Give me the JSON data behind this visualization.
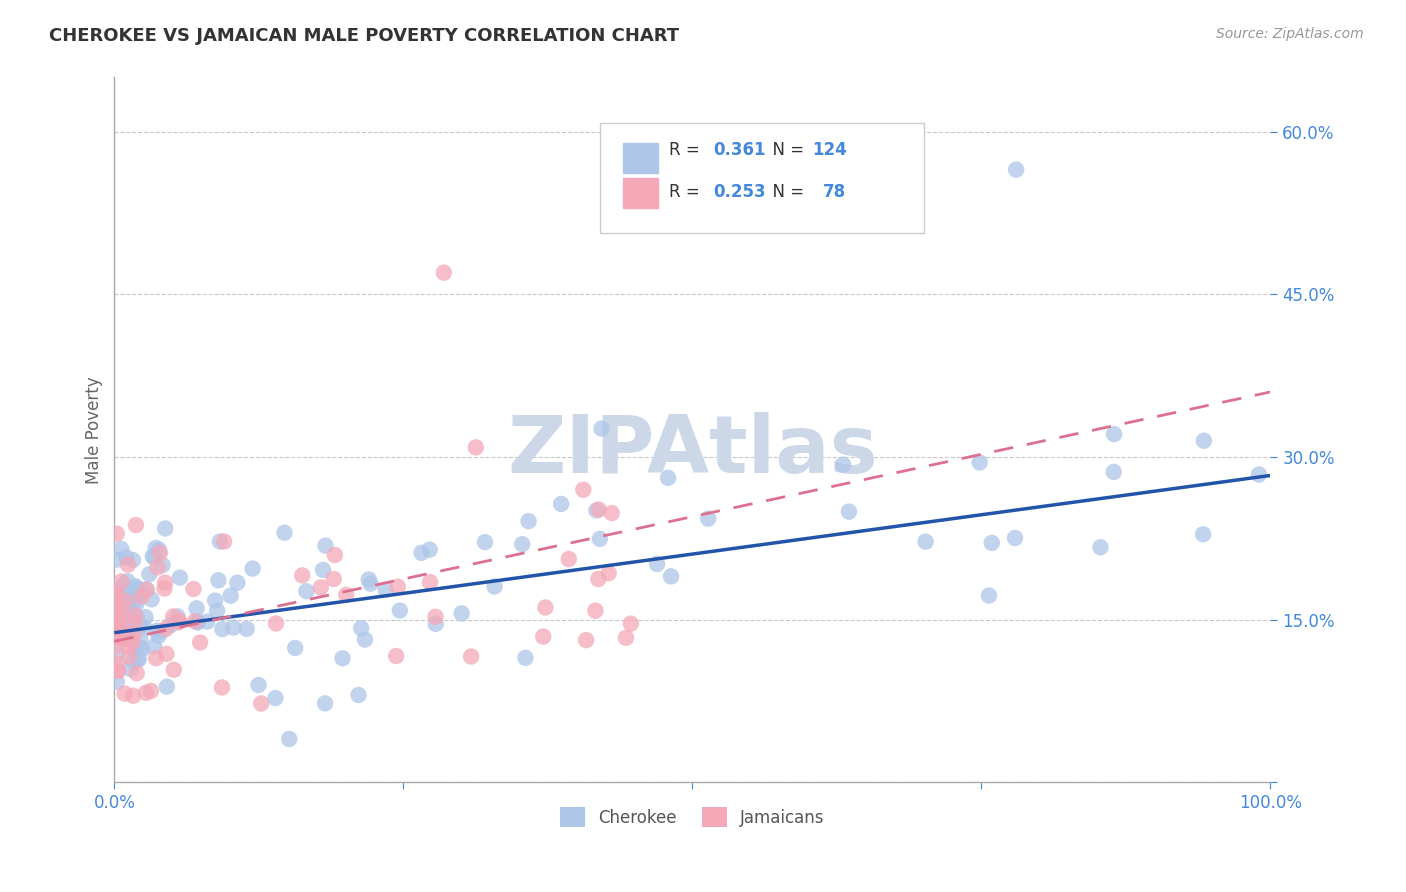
{
  "title": "CHEROKEE VS JAMAICAN MALE POVERTY CORRELATION CHART",
  "source": "Source: ZipAtlas.com",
  "ylabel": "Male Poverty",
  "yticks": [
    0.0,
    0.15,
    0.3,
    0.45,
    0.6
  ],
  "ytick_labels": [
    "",
    "15.0%",
    "30.0%",
    "45.0%",
    "60.0%"
  ],
  "xlim": [
    0.0,
    1.0
  ],
  "ylim": [
    0.0,
    0.65
  ],
  "cherokee_R": 0.361,
  "cherokee_N": 124,
  "jamaican_R": 0.253,
  "jamaican_N": 78,
  "cherokee_color": "#aec6e8",
  "jamaican_color": "#f4a8b8",
  "cherokee_line_color": "#2255aa",
  "jamaican_line_color": "#dd7090",
  "background_color": "#ffffff",
  "grid_color": "#bbbbbb",
  "title_color": "#333333",
  "source_color": "#999999",
  "label_color": "#4488dd",
  "watermark_color": "#ccd8e8",
  "cherokee_line_intercept": 0.138,
  "cherokee_line_slope": 0.145,
  "jamaican_line_intercept": 0.13,
  "jamaican_line_slope": 0.23
}
